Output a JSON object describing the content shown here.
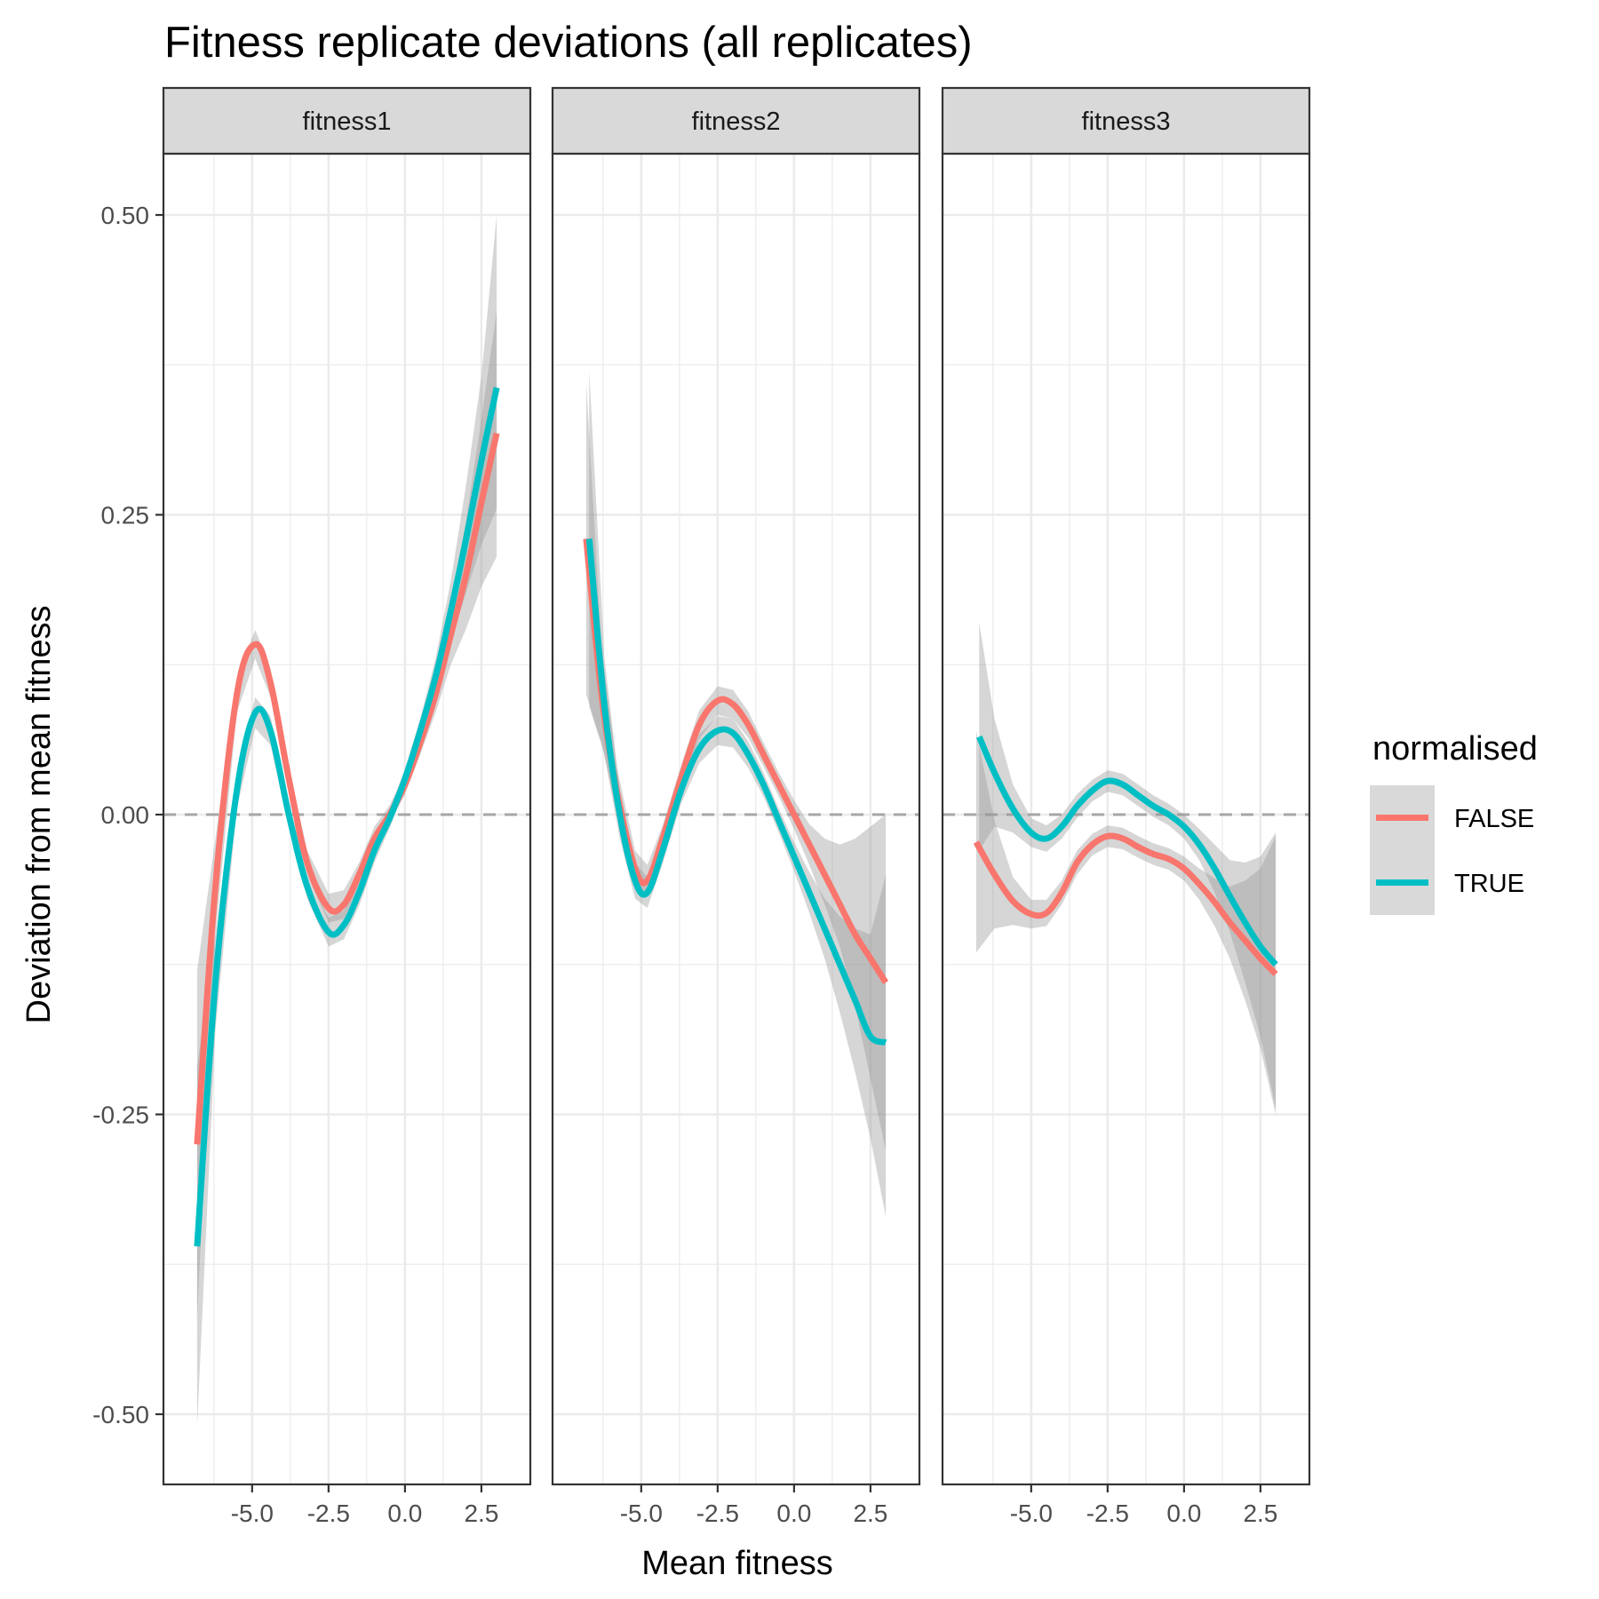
{
  "chart_data": {
    "type": "line",
    "title": "Fitness replicate deviations (all replicates)",
    "xlabel": "Mean fitness",
    "ylabel": "Deviation from mean fitness",
    "xlim": [
      -7.0,
      3.2
    ],
    "ylim": [
      -0.55,
      0.55
    ],
    "x_ticks": [
      -5.0,
      -2.5,
      0.0,
      2.5
    ],
    "x_tick_labels": [
      "-5.0",
      "-2.5",
      "0.0",
      "2.5"
    ],
    "y_ticks": [
      0.5,
      0.25,
      0.0,
      -0.25,
      -0.5
    ],
    "y_tick_labels": [
      "0.50",
      "0.25",
      "0.00",
      "-0.25",
      "-0.50"
    ],
    "reference_line": {
      "y": 0,
      "style": "dashed"
    },
    "grid": true,
    "legend": {
      "title": "normalised",
      "position": "right",
      "entries": [
        {
          "label": "FALSE",
          "color": "#F8766D"
        },
        {
          "label": "TRUE",
          "color": "#00BFC4"
        }
      ]
    },
    "facets": [
      {
        "label": "fitness1",
        "series": [
          {
            "name": "FALSE",
            "color": "#F8766D",
            "points": [
              {
                "x": -6.8,
                "y": -0.275,
                "lo": -0.42,
                "hi": -0.13
              },
              {
                "x": -6.2,
                "y": -0.06,
                "lo": -0.1,
                "hi": -0.02
              },
              {
                "x": -5.5,
                "y": 0.1,
                "lo": 0.085,
                "hi": 0.115
              },
              {
                "x": -4.9,
                "y": 0.142,
                "lo": 0.13,
                "hi": 0.154
              },
              {
                "x": -4.4,
                "y": 0.11,
                "lo": 0.098,
                "hi": 0.122
              },
              {
                "x": -3.8,
                "y": 0.03,
                "lo": 0.02,
                "hi": 0.04
              },
              {
                "x": -3.2,
                "y": -0.04,
                "lo": -0.05,
                "hi": -0.03
              },
              {
                "x": -2.5,
                "y": -0.078,
                "lo": -0.09,
                "hi": -0.066
              },
              {
                "x": -2.0,
                "y": -0.075,
                "lo": -0.087,
                "hi": -0.063
              },
              {
                "x": -1.5,
                "y": -0.05,
                "lo": -0.06,
                "hi": -0.04
              },
              {
                "x": -1.0,
                "y": -0.02,
                "lo": -0.03,
                "hi": -0.01
              },
              {
                "x": -0.5,
                "y": 0.0,
                "lo": -0.008,
                "hi": 0.008
              },
              {
                "x": 0.0,
                "y": 0.025,
                "lo": 0.017,
                "hi": 0.033
              },
              {
                "x": 0.5,
                "y": 0.06,
                "lo": 0.05,
                "hi": 0.07
              },
              {
                "x": 1.0,
                "y": 0.1,
                "lo": 0.085,
                "hi": 0.115
              },
              {
                "x": 1.5,
                "y": 0.15,
                "lo": 0.125,
                "hi": 0.175
              },
              {
                "x": 2.0,
                "y": 0.2,
                "lo": 0.155,
                "hi": 0.245
              },
              {
                "x": 2.5,
                "y": 0.26,
                "lo": 0.19,
                "hi": 0.33
              },
              {
                "x": 3.0,
                "y": 0.318,
                "lo": 0.215,
                "hi": 0.42
              }
            ]
          },
          {
            "name": "TRUE",
            "color": "#00BFC4",
            "points": [
              {
                "x": -6.8,
                "y": -0.36,
                "lo": -0.51,
                "hi": -0.21
              },
              {
                "x": -6.2,
                "y": -0.14,
                "lo": -0.18,
                "hi": -0.1
              },
              {
                "x": -5.5,
                "y": 0.02,
                "lo": 0.005,
                "hi": 0.035
              },
              {
                "x": -4.9,
                "y": 0.085,
                "lo": 0.072,
                "hi": 0.098
              },
              {
                "x": -4.4,
                "y": 0.07,
                "lo": 0.058,
                "hi": 0.082
              },
              {
                "x": -3.8,
                "y": 0.0,
                "lo": -0.01,
                "hi": 0.01
              },
              {
                "x": -3.2,
                "y": -0.06,
                "lo": -0.07,
                "hi": -0.05
              },
              {
                "x": -2.5,
                "y": -0.098,
                "lo": -0.11,
                "hi": -0.086
              },
              {
                "x": -2.0,
                "y": -0.092,
                "lo": -0.104,
                "hi": -0.08
              },
              {
                "x": -1.5,
                "y": -0.065,
                "lo": -0.076,
                "hi": -0.054
              },
              {
                "x": -1.0,
                "y": -0.03,
                "lo": -0.04,
                "hi": -0.02
              },
              {
                "x": -0.5,
                "y": -0.003,
                "lo": -0.011,
                "hi": 0.005
              },
              {
                "x": 0.0,
                "y": 0.03,
                "lo": 0.022,
                "hi": 0.038
              },
              {
                "x": 0.5,
                "y": 0.07,
                "lo": 0.06,
                "hi": 0.08
              },
              {
                "x": 1.0,
                "y": 0.115,
                "lo": 0.1,
                "hi": 0.13
              },
              {
                "x": 1.5,
                "y": 0.17,
                "lo": 0.145,
                "hi": 0.195
              },
              {
                "x": 2.0,
                "y": 0.23,
                "lo": 0.185,
                "hi": 0.275
              },
              {
                "x": 2.5,
                "y": 0.295,
                "lo": 0.225,
                "hi": 0.365
              },
              {
                "x": 3.0,
                "y": 0.356,
                "lo": 0.255,
                "hi": 0.5
              }
            ]
          }
        ]
      },
      {
        "label": "fitness2",
        "series": [
          {
            "name": "FALSE",
            "color": "#F8766D",
            "points": [
              {
                "x": -6.8,
                "y": 0.23,
                "lo": 0.1,
                "hi": 0.36
              },
              {
                "x": -6.3,
                "y": 0.1,
                "lo": 0.06,
                "hi": 0.14
              },
              {
                "x": -5.8,
                "y": 0.02,
                "lo": 0.0,
                "hi": 0.04
              },
              {
                "x": -5.2,
                "y": -0.045,
                "lo": -0.06,
                "hi": -0.03
              },
              {
                "x": -4.8,
                "y": -0.055,
                "lo": -0.068,
                "hi": -0.042
              },
              {
                "x": -4.3,
                "y": -0.02,
                "lo": -0.031,
                "hi": -0.009
              },
              {
                "x": -3.7,
                "y": 0.03,
                "lo": 0.019,
                "hi": 0.041
              },
              {
                "x": -3.1,
                "y": 0.075,
                "lo": 0.063,
                "hi": 0.087
              },
              {
                "x": -2.5,
                "y": 0.095,
                "lo": 0.083,
                "hi": 0.107
              },
              {
                "x": -2.0,
                "y": 0.092,
                "lo": 0.08,
                "hi": 0.104
              },
              {
                "x": -1.5,
                "y": 0.075,
                "lo": 0.064,
                "hi": 0.086
              },
              {
                "x": -1.0,
                "y": 0.05,
                "lo": 0.04,
                "hi": 0.06
              },
              {
                "x": -0.5,
                "y": 0.025,
                "lo": 0.015,
                "hi": 0.035
              },
              {
                "x": 0.0,
                "y": 0.0,
                "lo": -0.012,
                "hi": 0.012
              },
              {
                "x": 0.5,
                "y": -0.025,
                "lo": -0.042,
                "hi": -0.008
              },
              {
                "x": 1.0,
                "y": -0.05,
                "lo": -0.075,
                "hi": -0.02
              },
              {
                "x": 1.5,
                "y": -0.075,
                "lo": -0.11,
                "hi": -0.025
              },
              {
                "x": 2.0,
                "y": -0.1,
                "lo": -0.16,
                "hi": -0.02
              },
              {
                "x": 2.5,
                "y": -0.12,
                "lo": -0.22,
                "hi": -0.01
              },
              {
                "x": 3.0,
                "y": -0.14,
                "lo": -0.28,
                "hi": 0.0
              }
            ]
          },
          {
            "name": "TRUE",
            "color": "#00BFC4",
            "points": [
              {
                "x": -6.7,
                "y": 0.23,
                "lo": 0.09,
                "hi": 0.37
              },
              {
                "x": -6.2,
                "y": 0.09,
                "lo": 0.05,
                "hi": 0.13
              },
              {
                "x": -5.7,
                "y": 0.0,
                "lo": -0.02,
                "hi": 0.02
              },
              {
                "x": -5.2,
                "y": -0.055,
                "lo": -0.07,
                "hi": -0.04
              },
              {
                "x": -4.8,
                "y": -0.065,
                "lo": -0.078,
                "hi": -0.052
              },
              {
                "x": -4.3,
                "y": -0.03,
                "lo": -0.041,
                "hi": -0.019
              },
              {
                "x": -3.7,
                "y": 0.02,
                "lo": 0.009,
                "hi": 0.031
              },
              {
                "x": -3.1,
                "y": 0.055,
                "lo": 0.043,
                "hi": 0.067
              },
              {
                "x": -2.5,
                "y": 0.07,
                "lo": 0.058,
                "hi": 0.082
              },
              {
                "x": -2.0,
                "y": 0.068,
                "lo": 0.056,
                "hi": 0.08
              },
              {
                "x": -1.5,
                "y": 0.05,
                "lo": 0.039,
                "hi": 0.061
              },
              {
                "x": -1.0,
                "y": 0.025,
                "lo": 0.015,
                "hi": 0.035
              },
              {
                "x": -0.5,
                "y": -0.005,
                "lo": -0.015,
                "hi": 0.005
              },
              {
                "x": 0.0,
                "y": -0.035,
                "lo": -0.047,
                "hi": -0.023
              },
              {
                "x": 0.5,
                "y": -0.065,
                "lo": -0.082,
                "hi": -0.048
              },
              {
                "x": 1.0,
                "y": -0.095,
                "lo": -0.12,
                "hi": -0.07
              },
              {
                "x": 1.5,
                "y": -0.125,
                "lo": -0.165,
                "hi": -0.085
              },
              {
                "x": 2.0,
                "y": -0.155,
                "lo": -0.215,
                "hi": -0.095
              },
              {
                "x": 2.5,
                "y": -0.185,
                "lo": -0.27,
                "hi": -0.1
              },
              {
                "x": 3.0,
                "y": -0.19,
                "lo": -0.335,
                "hi": -0.05
              }
            ]
          }
        ]
      },
      {
        "label": "fitness3",
        "series": [
          {
            "name": "FALSE",
            "color": "#F8766D",
            "points": [
              {
                "x": -6.8,
                "y": -0.023,
                "lo": -0.115,
                "hi": 0.07
              },
              {
                "x": -6.2,
                "y": -0.05,
                "lo": -0.095,
                "hi": -0.005
              },
              {
                "x": -5.6,
                "y": -0.072,
                "lo": -0.092,
                "hi": -0.052
              },
              {
                "x": -5.0,
                "y": -0.083,
                "lo": -0.095,
                "hi": -0.071
              },
              {
                "x": -4.5,
                "y": -0.082,
                "lo": -0.093,
                "hi": -0.071
              },
              {
                "x": -4.0,
                "y": -0.065,
                "lo": -0.075,
                "hi": -0.055
              },
              {
                "x": -3.5,
                "y": -0.04,
                "lo": -0.05,
                "hi": -0.03
              },
              {
                "x": -3.0,
                "y": -0.025,
                "lo": -0.034,
                "hi": -0.016
              },
              {
                "x": -2.5,
                "y": -0.018,
                "lo": -0.027,
                "hi": -0.009
              },
              {
                "x": -2.0,
                "y": -0.02,
                "lo": -0.029,
                "hi": -0.011
              },
              {
                "x": -1.5,
                "y": -0.027,
                "lo": -0.036,
                "hi": -0.018
              },
              {
                "x": -1.0,
                "y": -0.033,
                "lo": -0.042,
                "hi": -0.024
              },
              {
                "x": -0.5,
                "y": -0.037,
                "lo": -0.046,
                "hi": -0.028
              },
              {
                "x": 0.0,
                "y": -0.045,
                "lo": -0.055,
                "hi": -0.035
              },
              {
                "x": 0.5,
                "y": -0.058,
                "lo": -0.071,
                "hi": -0.045
              },
              {
                "x": 1.0,
                "y": -0.073,
                "lo": -0.093,
                "hi": -0.053
              },
              {
                "x": 1.5,
                "y": -0.09,
                "lo": -0.12,
                "hi": -0.06
              },
              {
                "x": 2.0,
                "y": -0.105,
                "lo": -0.155,
                "hi": -0.055
              },
              {
                "x": 2.5,
                "y": -0.12,
                "lo": -0.195,
                "hi": -0.045
              },
              {
                "x": 3.0,
                "y": -0.133,
                "lo": -0.25,
                "hi": -0.018
              }
            ]
          },
          {
            "name": "TRUE",
            "color": "#00BFC4",
            "points": [
              {
                "x": -6.7,
                "y": 0.065,
                "lo": -0.03,
                "hi": 0.16
              },
              {
                "x": -6.2,
                "y": 0.035,
                "lo": -0.01,
                "hi": 0.08
              },
              {
                "x": -5.6,
                "y": 0.005,
                "lo": -0.015,
                "hi": 0.025
              },
              {
                "x": -5.0,
                "y": -0.015,
                "lo": -0.027,
                "hi": -0.003
              },
              {
                "x": -4.5,
                "y": -0.02,
                "lo": -0.031,
                "hi": -0.009
              },
              {
                "x": -4.0,
                "y": -0.01,
                "lo": -0.02,
                "hi": 0.0
              },
              {
                "x": -3.5,
                "y": 0.007,
                "lo": -0.003,
                "hi": 0.017
              },
              {
                "x": -3.0,
                "y": 0.02,
                "lo": 0.011,
                "hi": 0.029
              },
              {
                "x": -2.5,
                "y": 0.028,
                "lo": 0.019,
                "hi": 0.037
              },
              {
                "x": -2.0,
                "y": 0.025,
                "lo": 0.016,
                "hi": 0.034
              },
              {
                "x": -1.5,
                "y": 0.016,
                "lo": 0.007,
                "hi": 0.025
              },
              {
                "x": -1.0,
                "y": 0.007,
                "lo": -0.002,
                "hi": 0.016
              },
              {
                "x": -0.5,
                "y": 0.0,
                "lo": -0.009,
                "hi": 0.009
              },
              {
                "x": 0.0,
                "y": -0.01,
                "lo": -0.02,
                "hi": 0.0
              },
              {
                "x": 0.5,
                "y": -0.025,
                "lo": -0.038,
                "hi": -0.012
              },
              {
                "x": 1.0,
                "y": -0.045,
                "lo": -0.065,
                "hi": -0.025
              },
              {
                "x": 1.5,
                "y": -0.068,
                "lo": -0.098,
                "hi": -0.038
              },
              {
                "x": 2.0,
                "y": -0.09,
                "lo": -0.14,
                "hi": -0.04
              },
              {
                "x": 2.5,
                "y": -0.11,
                "lo": -0.185,
                "hi": -0.035
              },
              {
                "x": 3.0,
                "y": -0.125,
                "lo": -0.245,
                "hi": -0.015
              }
            ]
          }
        ]
      }
    ]
  }
}
